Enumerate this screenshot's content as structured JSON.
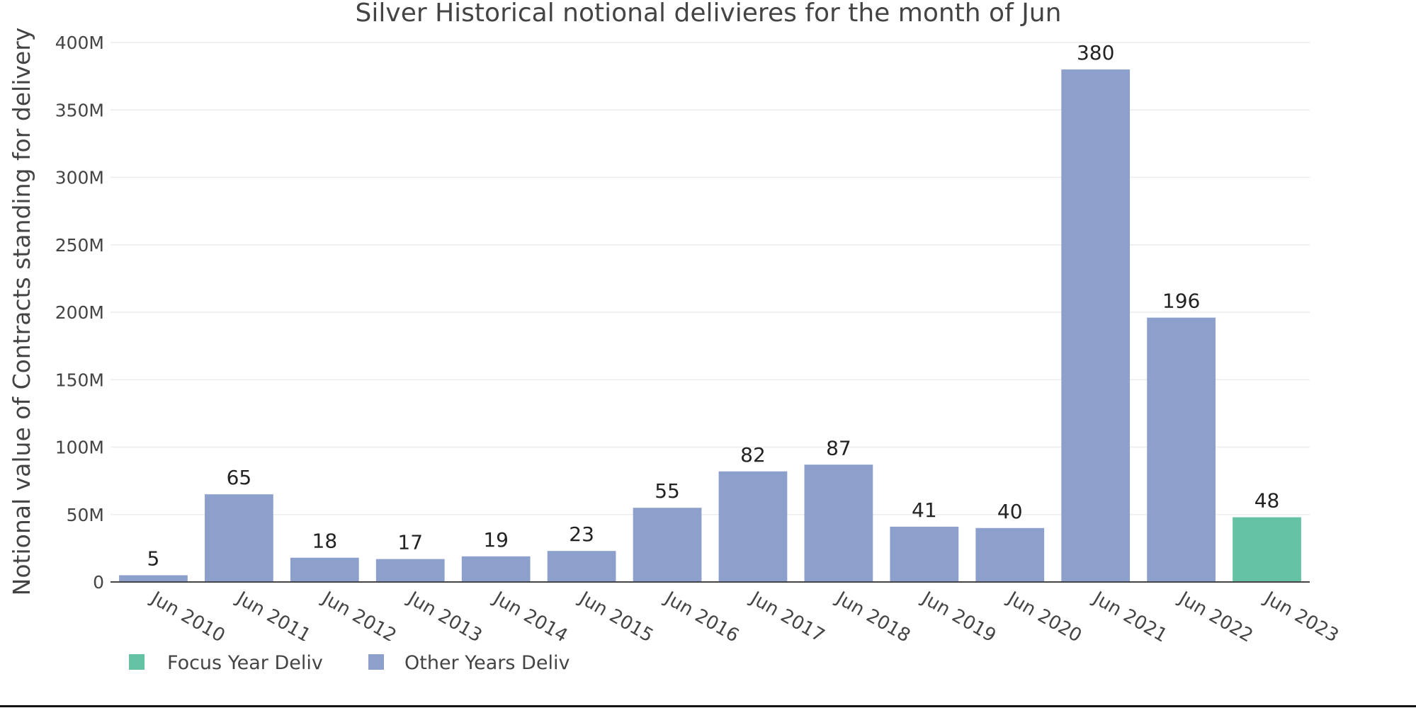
{
  "chart_data": {
    "type": "bar",
    "title": "Silver Historical notional delivieres for the month of Jun",
    "xlabel": "",
    "ylabel": "Notional value of Contracts standing for delivery",
    "ylim": [
      0,
      400000000
    ],
    "yticks": [
      0,
      50000000,
      100000000,
      150000000,
      200000000,
      250000000,
      300000000,
      350000000,
      400000000
    ],
    "ytick_labels": [
      "0",
      "50M",
      "100M",
      "150M",
      "200M",
      "250M",
      "300M",
      "350M",
      "400M"
    ],
    "grid": true,
    "categories": [
      "Jun 2010",
      "Jun 2011",
      "Jun 2012",
      "Jun 2013",
      "Jun 2014",
      "Jun 2015",
      "Jun 2016",
      "Jun 2017",
      "Jun 2018",
      "Jun 2019",
      "Jun 2020",
      "Jun 2021",
      "Jun 2022",
      "Jun 2023"
    ],
    "series": [
      {
        "name": "Focus Year Deliv",
        "color": "#66c2a5",
        "values": [
          null,
          null,
          null,
          null,
          null,
          null,
          null,
          null,
          null,
          null,
          null,
          null,
          null,
          48000000
        ],
        "labels": [
          "",
          "",
          "",
          "",
          "",
          "",
          "",
          "",
          "",
          "",
          "",
          "",
          "",
          "48"
        ]
      },
      {
        "name": "Other Years Deliv",
        "color": "#8da0cb",
        "values": [
          5000000,
          65000000,
          18000000,
          17000000,
          19000000,
          23000000,
          55000000,
          82000000,
          87000000,
          41000000,
          40000000,
          380000000,
          196000000,
          null
        ],
        "labels": [
          "5",
          "65",
          "18",
          "17",
          "19",
          "23",
          "55",
          "82",
          "87",
          "41",
          "40",
          "380",
          "196",
          ""
        ]
      }
    ],
    "legend": {
      "placement": "bottom-left",
      "entries": [
        "Focus Year Deliv",
        "Other Years Deliv"
      ]
    }
  }
}
